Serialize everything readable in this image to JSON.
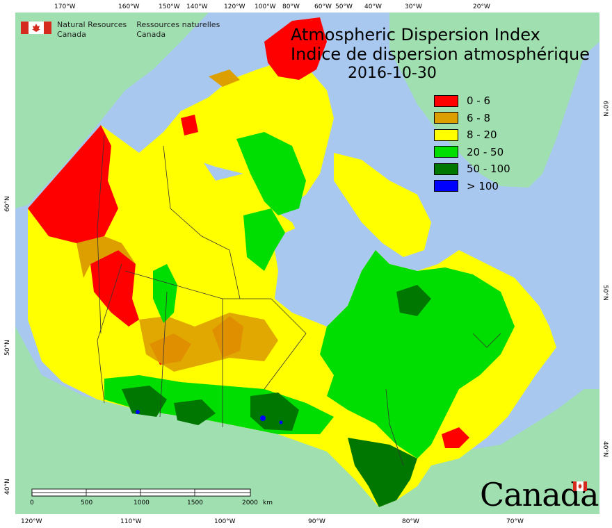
{
  "title": {
    "english": "Atmospheric Dispersion Index",
    "french": "Indice de dispersion atmosphérique",
    "date": "2016-10-30"
  },
  "agency": {
    "en_line1": "Natural Resources",
    "en_line2": "Canada",
    "fr_line1": "Ressources naturelles",
    "fr_line2": "Canada"
  },
  "wordmark": "Canada",
  "legend": [
    {
      "label": "0 - 6",
      "color": "#ff0000"
    },
    {
      "label": "6 - 8",
      "color": "#dd9f00"
    },
    {
      "label": "8 - 20",
      "color": "#ffff00"
    },
    {
      "label": "20 - 50",
      "color": "#00dd00"
    },
    {
      "label": "50 - 100",
      "color": "#007700"
    },
    {
      "label": "> 100",
      "color": "#0000ff"
    }
  ],
  "top_longitudes": [
    "170°W",
    "160°W",
    "150°W",
    "140°W",
    "120°W",
    "100°W",
    "80°W",
    "60°W",
    "50°W",
    "40°W",
    "30°W",
    "20°W"
  ],
  "bottom_longitudes": [
    "120°W",
    "110°W",
    "100°W",
    "90°W",
    "80°W",
    "70°W"
  ],
  "left_latitudes": [
    "60°N",
    "50°N",
    "40°N"
  ],
  "right_latitudes": [
    "60°N",
    "50°N",
    "40°N"
  ],
  "scale_bar": {
    "ticks": [
      "0",
      "500",
      "1000",
      "1500",
      "2000"
    ],
    "unit": "km"
  },
  "colors": {
    "ocean": "#a8c8f0",
    "land_outside": "#a0e0b0",
    "border": "#333333"
  }
}
